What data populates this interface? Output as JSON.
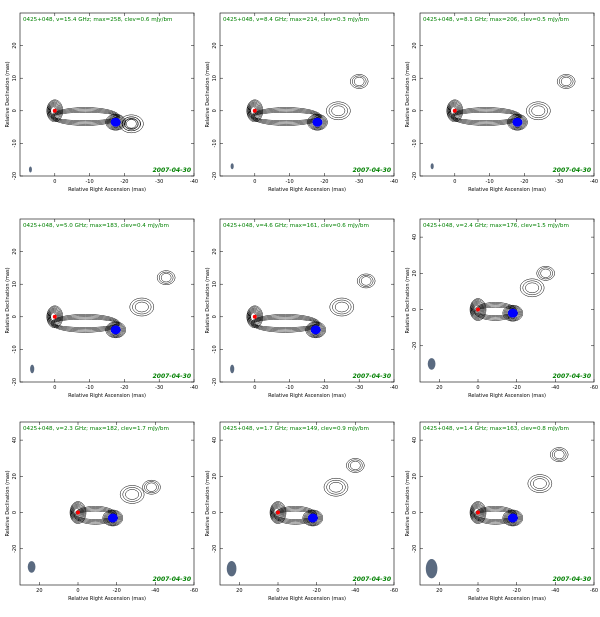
{
  "xlabel": "Relative Right Ascension (mas)",
  "ylabel": "Relative Declination (mas)",
  "chart_data": [
    {
      "type": "contour",
      "title": "0425+048, ν=15.4 GHz; max=258, clev=0.6 mJy/bm",
      "date": "2007-04-30",
      "xlim": [
        10,
        -40
      ],
      "ylim": [
        -20,
        30
      ],
      "xticks": [
        0,
        -10,
        -20,
        -30,
        -40
      ],
      "yticks": [
        -20,
        -10,
        0,
        10,
        20
      ],
      "core": {
        "x": 0,
        "y": 0
      },
      "component": {
        "x": -17.5,
        "y": -3.5
      },
      "jet_end": {
        "x": -22,
        "y": -4
      },
      "ext": {
        "x": -22,
        "y": -4
      },
      "beam": {
        "x": 7,
        "y": -18,
        "w": 0.3,
        "h": 0.6
      }
    },
    {
      "type": "contour",
      "title": "0425+048, ν=8.4 GHz; max=214, clev=0.3 mJy/bm",
      "date": "2007-04-30",
      "xlim": [
        10,
        -40
      ],
      "ylim": [
        -20,
        30
      ],
      "xticks": [
        0,
        -10,
        -20,
        -30,
        -40
      ],
      "yticks": [
        -20,
        -10,
        0,
        10,
        20
      ],
      "core": {
        "x": 0,
        "y": 0
      },
      "component": {
        "x": -18,
        "y": -3.5
      },
      "jet_end": {
        "x": -24,
        "y": 0
      },
      "ext": {
        "x": -30,
        "y": 9
      },
      "beam": {
        "x": 6.5,
        "y": -17,
        "w": 0.9,
        "h": 1.7
      }
    },
    {
      "type": "contour",
      "title": "0425+048, ν=8.1 GHz; max=206, clev=0.5 mJy/bm",
      "date": "2007-04-30",
      "xlim": [
        10,
        -40
      ],
      "ylim": [
        -20,
        30
      ],
      "xticks": [
        0,
        -10,
        -20,
        -30,
        -40
      ],
      "yticks": [
        -20,
        -10,
        0,
        10,
        20
      ],
      "core": {
        "x": 0,
        "y": 0
      },
      "component": {
        "x": -18,
        "y": -3.5
      },
      "jet_end": {
        "x": -24,
        "y": 0
      },
      "ext": {
        "x": -32,
        "y": 9
      },
      "beam": {
        "x": 6.5,
        "y": -17,
        "w": 0.9,
        "h": 1.7
      }
    },
    {
      "type": "contour",
      "title": "0425+048, ν=5.0 GHz; max=183, clev=0.4 mJy/bm",
      "date": "2007-04-30",
      "xlim": [
        10,
        -40
      ],
      "ylim": [
        -20,
        30
      ],
      "xticks": [
        0,
        -10,
        -20,
        -30,
        -40
      ],
      "yticks": [
        -20,
        -10,
        0,
        10,
        20
      ],
      "core": {
        "x": 0,
        "y": 0
      },
      "component": {
        "x": -17.5,
        "y": -4
      },
      "jet_end": {
        "x": -25,
        "y": 3
      },
      "ext": {
        "x": -32,
        "y": 12
      },
      "beam": {
        "x": 6.5,
        "y": -16,
        "w": 1.2,
        "h": 2.5
      }
    },
    {
      "type": "contour",
      "title": "0425+048, ν=4.6 GHz; max=161, clev=0.6 mJy/bm",
      "date": "2007-04-30",
      "xlim": [
        10,
        -40
      ],
      "ylim": [
        -20,
        30
      ],
      "xticks": [
        0,
        -10,
        -20,
        -30,
        -40
      ],
      "yticks": [
        -20,
        -10,
        0,
        10,
        20
      ],
      "core": {
        "x": 0,
        "y": 0
      },
      "component": {
        "x": -17.5,
        "y": -4
      },
      "jet_end": {
        "x": -25,
        "y": 3
      },
      "ext": {
        "x": -32,
        "y": 11
      },
      "beam": {
        "x": 6.5,
        "y": -16,
        "w": 1.2,
        "h": 2.5
      }
    },
    {
      "type": "contour",
      "title": "0425+048, ν=2.4 GHz; max=176, clev=1.5 mJy/bm",
      "date": "2007-04-30",
      "xlim": [
        30,
        -60
      ],
      "ylim": [
        -40,
        50
      ],
      "xticks": [
        20,
        0,
        -20,
        -40,
        -60
      ],
      "yticks": [
        -20,
        0,
        20,
        40
      ],
      "core": {
        "x": 0,
        "y": 0
      },
      "component": {
        "x": -18,
        "y": -2
      },
      "jet_end": {
        "x": -28,
        "y": 12
      },
      "ext": {
        "x": -35,
        "y": 20
      },
      "beam": {
        "x": 24,
        "y": -30,
        "w": 4,
        "h": 6
      }
    },
    {
      "type": "contour",
      "title": "0425+048, ν=2.3 GHz; max=182, clev=1.7 mJy/bm",
      "date": "2007-04-30",
      "xlim": [
        30,
        -60
      ],
      "ylim": [
        -40,
        50
      ],
      "xticks": [
        20,
        0,
        -20,
        -40,
        -60
      ],
      "yticks": [
        -20,
        0,
        20,
        40
      ],
      "core": {
        "x": 0,
        "y": 0
      },
      "component": {
        "x": -18,
        "y": -3
      },
      "jet_end": {
        "x": -28,
        "y": 10
      },
      "ext": {
        "x": -38,
        "y": 14
      },
      "beam": {
        "x": 24,
        "y": -30,
        "w": 4,
        "h": 6
      }
    },
    {
      "type": "contour",
      "title": "0425+048, ν=1.7 GHz; max=149, clev=0.9 mJy/bm",
      "date": "2007-04-30",
      "xlim": [
        30,
        -60
      ],
      "ylim": [
        -40,
        50
      ],
      "xticks": [
        20,
        0,
        -20,
        -40,
        -60
      ],
      "yticks": [
        -20,
        0,
        20,
        40
      ],
      "core": {
        "x": 0,
        "y": 0
      },
      "component": {
        "x": -18,
        "y": -3
      },
      "jet_end": {
        "x": -30,
        "y": 14
      },
      "ext": {
        "x": -40,
        "y": 26
      },
      "beam": {
        "x": 24,
        "y": -31,
        "w": 5,
        "h": 8
      }
    },
    {
      "type": "contour",
      "title": "0425+048, ν=1.4 GHz; max=163, clev=0.8 mJy/bm",
      "date": "2007-04-30",
      "xlim": [
        30,
        -60
      ],
      "ylim": [
        -40,
        50
      ],
      "xticks": [
        20,
        0,
        -20,
        -40,
        -60
      ],
      "yticks": [
        -20,
        0,
        20,
        40
      ],
      "core": {
        "x": 0,
        "y": 0
      },
      "component": {
        "x": -18,
        "y": -3
      },
      "jet_end": {
        "x": -32,
        "y": 16
      },
      "ext": {
        "x": -42,
        "y": 32
      },
      "beam": {
        "x": 24,
        "y": -31,
        "w": 6,
        "h": 10
      }
    }
  ],
  "colors": {
    "title": "#008000",
    "core": "#ff0000",
    "component": "#0000ff",
    "beam": "#5a6a80",
    "contour": "#000000"
  }
}
